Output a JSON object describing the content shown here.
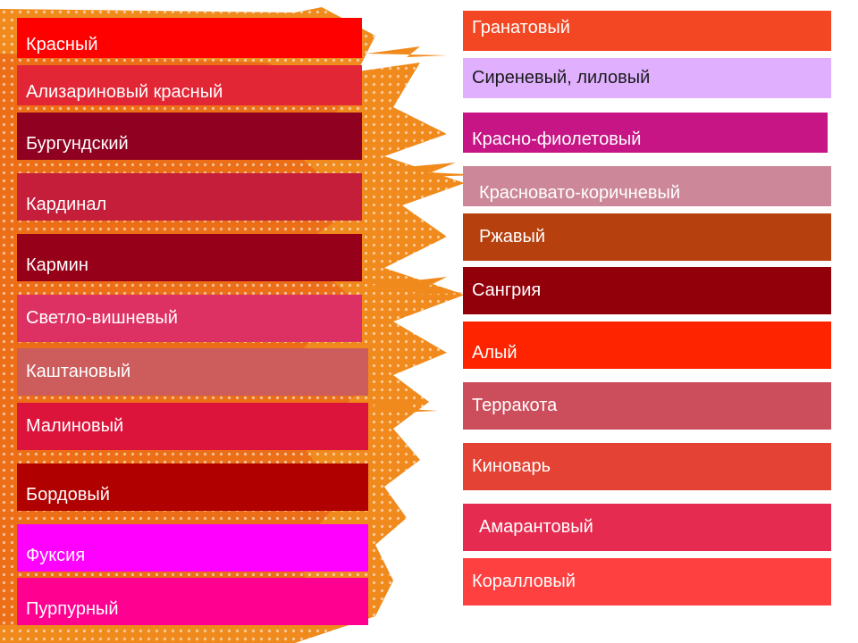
{
  "left_column": [
    {
      "label": "Красный",
      "color": "#ff0000"
    },
    {
      "label": "Ализариновый красный",
      "color": "#e32636"
    },
    {
      "label": "Бургундский",
      "color": "#900020"
    },
    {
      "label": "Кардинал",
      "color": "#c41e3a"
    },
    {
      "label": "Кармин",
      "color": "#960018"
    },
    {
      "label": "Светло-вишневый",
      "color": "#de3163"
    },
    {
      "label": "Каштановый",
      "color": "#cd5c5c"
    },
    {
      "label": "Малиновый",
      "color": "#dc143c"
    },
    {
      "label": "Бордовый",
      "color": "#b00000"
    },
    {
      "label": "Фуксия",
      "color": "#ff00ff"
    },
    {
      "label": "Пурпурный",
      "color": "#ff0090"
    }
  ],
  "right_column": [
    {
      "label": "Гранатовый",
      "color": "#f34723"
    },
    {
      "label": "Сиреневый, лиловый",
      "color": "#e0b0ff"
    },
    {
      "label": "Красно-фиолетовый",
      "color": "#c71585"
    },
    {
      "label": "Красновато-коричневый",
      "color": "#cc8899"
    },
    {
      "label": "Ржавый",
      "color": "#b7410e"
    },
    {
      "label": "Сангрия",
      "color": "#92000a"
    },
    {
      "label": "Алый",
      "color": "#ff2400"
    },
    {
      "label": "Терракота",
      "color": "#cc4e5c"
    },
    {
      "label": "Киноварь",
      "color": "#e34234"
    },
    {
      "label": "Амарантовый",
      "color": "#e52b50"
    },
    {
      "label": "Коралловый",
      "color": "#ff4040"
    }
  ],
  "background_color": "#f08a1c"
}
